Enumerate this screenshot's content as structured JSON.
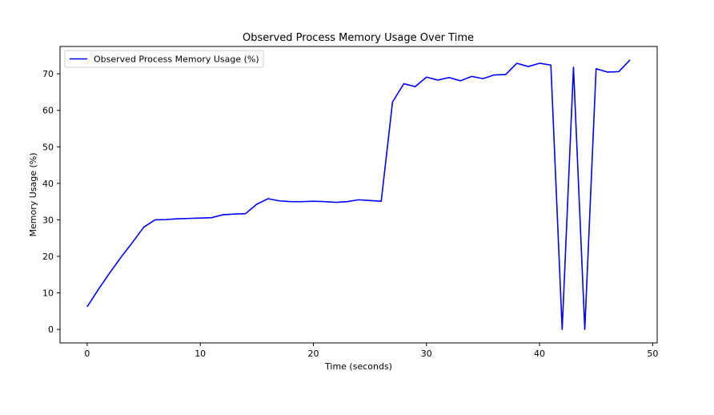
{
  "chart_data": {
    "type": "line",
    "title": "Observed Process Memory Usage Over Time",
    "xlabel": "Time (seconds)",
    "ylabel": "Memory Usage (%)",
    "xlim": [
      -2.4,
      50.4
    ],
    "ylim": [
      -3.7,
      77.5
    ],
    "xticks": [
      0,
      10,
      20,
      30,
      40,
      50
    ],
    "yticks": [
      0,
      10,
      20,
      30,
      40,
      50,
      60,
      70
    ],
    "grid": false,
    "legend_position": "upper-left",
    "series": [
      {
        "name": "Observed Process Memory Usage (%)",
        "color": "#0000ff",
        "x": [
          0,
          1,
          2,
          3,
          4,
          5,
          6,
          7,
          8,
          9,
          10,
          11,
          12,
          13,
          14,
          15,
          16,
          17,
          18,
          19,
          20,
          21,
          22,
          23,
          24,
          25,
          26,
          27,
          28,
          29,
          30,
          31,
          32,
          33,
          34,
          35,
          36,
          37,
          38,
          39,
          40,
          41,
          42,
          43,
          44,
          45,
          46,
          47,
          48
        ],
        "y": [
          6.2,
          11.0,
          15.5,
          19.8,
          23.8,
          28.0,
          30.0,
          30.1,
          30.3,
          30.4,
          30.5,
          30.6,
          31.4,
          31.6,
          31.7,
          34.3,
          35.8,
          35.2,
          35.0,
          35.0,
          35.1,
          35.0,
          34.8,
          35.0,
          35.5,
          35.3,
          35.1,
          62.3,
          67.3,
          66.5,
          69.1,
          68.3,
          69.0,
          68.1,
          69.3,
          68.7,
          69.7,
          69.8,
          72.9,
          72.0,
          72.9,
          72.4,
          0.0,
          71.8,
          0.0,
          71.4,
          70.5,
          70.6,
          73.8
        ]
      }
    ]
  }
}
